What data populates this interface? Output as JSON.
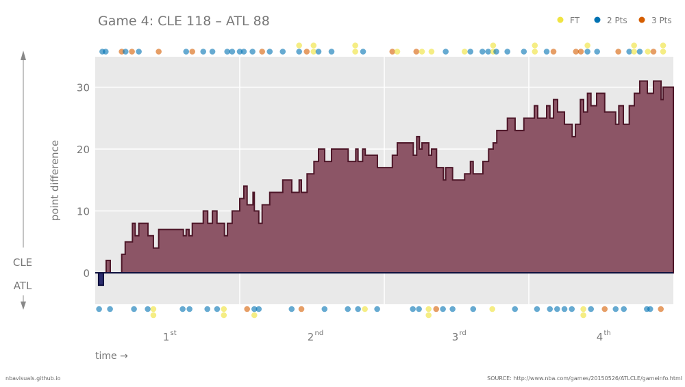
{
  "chart_data": {
    "type": "area",
    "title": "Game 4: CLE 118  –  ATL 88",
    "ylabel": "point difference",
    "xlabel": "time →",
    "team_above": "CLE",
    "team_below": "ATL",
    "x_unit": "game minutes",
    "xlim": [
      0,
      48
    ],
    "ylim": [
      -5,
      35
    ],
    "yticks": [
      "0",
      "10",
      "20",
      "30"
    ],
    "quarters": [
      {
        "num": "1",
        "sup": "st"
      },
      {
        "num": "2",
        "sup": "nd"
      },
      {
        "num": "3",
        "sup": "rd"
      },
      {
        "num": "4",
        "sup": "th"
      }
    ],
    "grid": true,
    "legend_position": "top-right",
    "legend": [
      {
        "key": "ft",
        "label": "FT",
        "color": "#f0e442"
      },
      {
        "key": "2",
        "label": "2 Pts",
        "color": "#0072b2"
      },
      {
        "key": "3",
        "label": "3 Pts",
        "color": "#d55e00"
      }
    ],
    "colors": {
      "lead_above": "#8c5566",
      "lead_above_line": "#4d1628",
      "lead_below": "#2b2d6e",
      "lead_below_line": "#0d0f3d"
    },
    "series": [
      [
        0,
        0
      ],
      [
        0.28,
        -2
      ],
      [
        0.68,
        0
      ],
      [
        0.91,
        2
      ],
      [
        1.25,
        0
      ],
      [
        2.2,
        3
      ],
      [
        2.49,
        5
      ],
      [
        3.09,
        8
      ],
      [
        3.32,
        6
      ],
      [
        3.62,
        8
      ],
      [
        4.38,
        6
      ],
      [
        4.83,
        4
      ],
      [
        5.27,
        7
      ],
      [
        7.32,
        6
      ],
      [
        7.55,
        7
      ],
      [
        7.79,
        6
      ],
      [
        8.06,
        8
      ],
      [
        8.97,
        10
      ],
      [
        9.34,
        8
      ],
      [
        9.73,
        10
      ],
      [
        10.11,
        8
      ],
      [
        10.73,
        6
      ],
      [
        10.98,
        8
      ],
      [
        11.37,
        10
      ],
      [
        12.0,
        12
      ],
      [
        12.34,
        14
      ],
      [
        12.61,
        11
      ],
      [
        13.1,
        13
      ],
      [
        13.21,
        10
      ],
      [
        13.58,
        8
      ],
      [
        13.86,
        11
      ],
      [
        14.49,
        13
      ],
      [
        15.57,
        15
      ],
      [
        16.32,
        13
      ],
      [
        16.93,
        15
      ],
      [
        17.12,
        13
      ],
      [
        17.59,
        16
      ],
      [
        18.16,
        18
      ],
      [
        18.54,
        20
      ],
      [
        19.05,
        18
      ],
      [
        19.62,
        20
      ],
      [
        21.0,
        18
      ],
      [
        21.63,
        20
      ],
      [
        21.82,
        18
      ],
      [
        22.2,
        20
      ],
      [
        22.42,
        19
      ],
      [
        23.43,
        17
      ],
      [
        24.67,
        19
      ],
      [
        25.08,
        21
      ],
      [
        26.41,
        19
      ],
      [
        26.69,
        22
      ],
      [
        26.92,
        20
      ],
      [
        27.13,
        21
      ],
      [
        27.7,
        19
      ],
      [
        27.92,
        20
      ],
      [
        28.34,
        17
      ],
      [
        28.91,
        15
      ],
      [
        29.1,
        17
      ],
      [
        29.67,
        15
      ],
      [
        30.67,
        16
      ],
      [
        31.15,
        18
      ],
      [
        31.38,
        16
      ],
      [
        32.19,
        18
      ],
      [
        32.66,
        20
      ],
      [
        33.04,
        21
      ],
      [
        33.34,
        23
      ],
      [
        34.22,
        25
      ],
      [
        34.86,
        23
      ],
      [
        35.59,
        25
      ],
      [
        36.46,
        27
      ],
      [
        36.74,
        25
      ],
      [
        37.48,
        27
      ],
      [
        37.75,
        25
      ],
      [
        38.05,
        28
      ],
      [
        38.39,
        26
      ],
      [
        38.96,
        24
      ],
      [
        39.6,
        22
      ],
      [
        39.87,
        24
      ],
      [
        40.28,
        28
      ],
      [
        40.55,
        26
      ],
      [
        40.87,
        29
      ],
      [
        41.16,
        27
      ],
      [
        41.63,
        29
      ],
      [
        42.3,
        26
      ],
      [
        43.21,
        24
      ],
      [
        43.47,
        27
      ],
      [
        43.85,
        24
      ],
      [
        44.34,
        27
      ],
      [
        44.76,
        29
      ],
      [
        45.21,
        31
      ],
      [
        45.84,
        29
      ],
      [
        46.35,
        31
      ],
      [
        46.98,
        28
      ],
      [
        47.15,
        30
      ],
      [
        48,
        30
      ]
    ],
    "scoring_cle": [
      [
        0.59,
        "2"
      ],
      [
        0.87,
        "2"
      ],
      [
        2.2,
        "3"
      ],
      [
        2.52,
        "2"
      ],
      [
        3.05,
        "3"
      ],
      [
        3.62,
        "2"
      ],
      [
        5.27,
        "3"
      ],
      [
        7.55,
        "2"
      ],
      [
        8.06,
        "3"
      ],
      [
        8.97,
        "2"
      ],
      [
        9.73,
        "2"
      ],
      [
        10.96,
        "2"
      ],
      [
        11.37,
        "2"
      ],
      [
        12.0,
        "2"
      ],
      [
        12.34,
        "2"
      ],
      [
        13.06,
        "2"
      ],
      [
        13.86,
        "3"
      ],
      [
        14.49,
        "2"
      ],
      [
        15.57,
        "2"
      ],
      [
        16.93,
        "2"
      ],
      [
        16.93,
        "ft"
      ],
      [
        17.56,
        "3"
      ],
      [
        18.13,
        "ft"
      ],
      [
        18.13,
        "ft"
      ],
      [
        18.54,
        "2"
      ],
      [
        19.62,
        "2"
      ],
      [
        21.59,
        "ft"
      ],
      [
        21.59,
        "ft"
      ],
      [
        22.24,
        "2"
      ],
      [
        24.67,
        "3"
      ],
      [
        25.08,
        "ft"
      ],
      [
        26.66,
        "3"
      ],
      [
        27.13,
        "ft"
      ],
      [
        27.92,
        "ft"
      ],
      [
        29.1,
        "2"
      ],
      [
        30.67,
        "ft"
      ],
      [
        31.15,
        "2"
      ],
      [
        32.15,
        "2"
      ],
      [
        32.63,
        "2"
      ],
      [
        33.04,
        "ft"
      ],
      [
        33.04,
        "ft"
      ],
      [
        33.3,
        "2"
      ],
      [
        34.22,
        "2"
      ],
      [
        35.59,
        "2"
      ],
      [
        36.5,
        "ft"
      ],
      [
        36.5,
        "ft"
      ],
      [
        37.48,
        "2"
      ],
      [
        38.05,
        "3"
      ],
      [
        39.91,
        "3"
      ],
      [
        40.32,
        "3"
      ],
      [
        40.87,
        "2"
      ],
      [
        40.87,
        "ft"
      ],
      [
        41.67,
        "2"
      ],
      [
        43.43,
        "3"
      ],
      [
        44.34,
        "2"
      ],
      [
        44.74,
        "ft"
      ],
      [
        44.74,
        "ft"
      ],
      [
        45.21,
        "2"
      ],
      [
        45.88,
        "ft"
      ],
      [
        46.35,
        "3"
      ],
      [
        47.15,
        "ft"
      ],
      [
        47.15,
        "ft"
      ]
    ],
    "scoring_atl": [
      [
        0.32,
        "2"
      ],
      [
        1.23,
        "2"
      ],
      [
        3.22,
        "2"
      ],
      [
        4.36,
        "2"
      ],
      [
        4.83,
        "ft"
      ],
      [
        4.83,
        "ft"
      ],
      [
        7.26,
        "2"
      ],
      [
        7.83,
        "2"
      ],
      [
        9.31,
        "2"
      ],
      [
        10.12,
        "2"
      ],
      [
        10.68,
        "ft"
      ],
      [
        10.68,
        "ft"
      ],
      [
        12.61,
        "3"
      ],
      [
        13.21,
        "2"
      ],
      [
        13.21,
        "ft"
      ],
      [
        13.58,
        "2"
      ],
      [
        16.31,
        "2"
      ],
      [
        17.12,
        "3"
      ],
      [
        19.04,
        "2"
      ],
      [
        20.97,
        "2"
      ],
      [
        21.82,
        "2"
      ],
      [
        22.39,
        "ft"
      ],
      [
        23.41,
        "2"
      ],
      [
        26.37,
        "2"
      ],
      [
        26.88,
        "2"
      ],
      [
        27.68,
        "ft"
      ],
      [
        27.68,
        "ft"
      ],
      [
        28.31,
        "3"
      ],
      [
        28.87,
        "2"
      ],
      [
        29.67,
        "2"
      ],
      [
        31.38,
        "2"
      ],
      [
        32.97,
        "ft"
      ],
      [
        34.85,
        "2"
      ],
      [
        36.68,
        "2"
      ],
      [
        37.75,
        "2"
      ],
      [
        38.35,
        "2"
      ],
      [
        38.96,
        "2"
      ],
      [
        39.57,
        "2"
      ],
      [
        40.53,
        "ft"
      ],
      [
        40.53,
        "ft"
      ],
      [
        41.16,
        "2"
      ],
      [
        42.3,
        "3"
      ],
      [
        43.21,
        "2"
      ],
      [
        43.89,
        "2"
      ],
      [
        45.8,
        "2"
      ],
      [
        46.08,
        "2"
      ],
      [
        46.96,
        "3"
      ]
    ]
  },
  "footer": {
    "site": "nbavisuals.github.io",
    "source": "SOURCE: http://www.nba.com/games/20150526/ATLCLE/gameinfo.html"
  }
}
